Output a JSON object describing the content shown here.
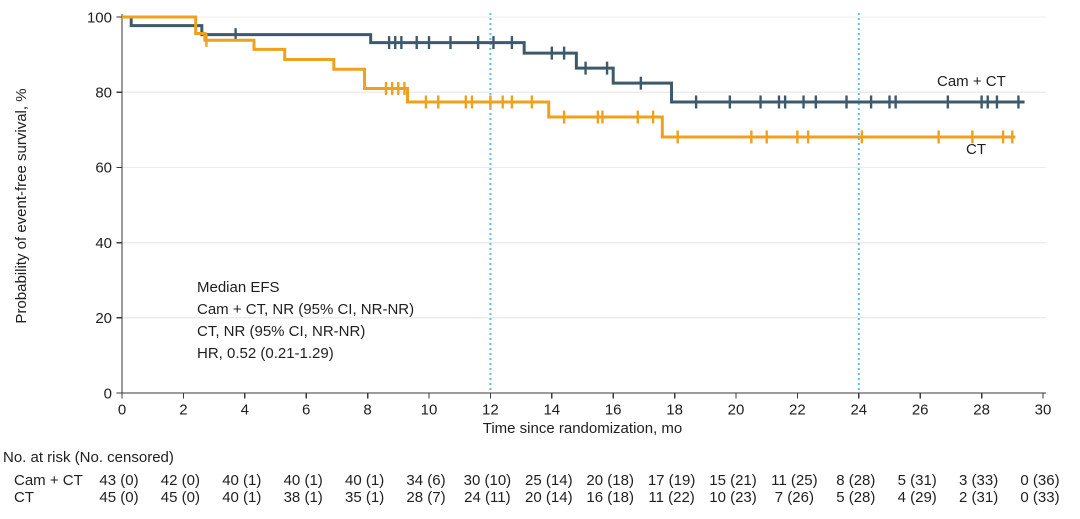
{
  "colors": {
    "series_cam_ct": "#3d5a6c",
    "series_ct": "#efa11d",
    "reference_line": "#59c2ea",
    "grid": "#ececec",
    "axis": "#3a3a3a",
    "text": "#1f1f1f"
  },
  "chart_data": {
    "type": "line",
    "variant": "kaplan-meier-step",
    "title": "",
    "xlabel": "Time since randomization, mo",
    "ylabel": "Probability of event-free survival, %",
    "xlim": [
      0,
      30
    ],
    "ylim": [
      0,
      100
    ],
    "x_ticks": [
      0,
      2,
      4,
      6,
      8,
      10,
      12,
      14,
      16,
      18,
      20,
      22,
      24,
      26,
      28,
      30
    ],
    "y_ticks": [
      0,
      20,
      40,
      60,
      80,
      100
    ],
    "grid": "horizontal",
    "legend_position": "curve-end-labels",
    "reference_lines_x": [
      12,
      24
    ],
    "annotation": {
      "lines": [
        "Median EFS",
        "Cam + CT, NR (95% CI, NR-NR)",
        "CT, NR (95% CI, NR-NR)",
        "HR, 0.52 (0.21-1.29)"
      ]
    },
    "series": [
      {
        "name": "Cam + CT",
        "end_label": "Cam + CT",
        "color": "#3d5a6c",
        "steps": [
          [
            0,
            100
          ],
          [
            0.3,
            97.7
          ],
          [
            2.6,
            95.3
          ],
          [
            8.1,
            93.2
          ],
          [
            13.1,
            90.4
          ],
          [
            14.8,
            86.4
          ],
          [
            16.0,
            82.4
          ],
          [
            17.9,
            77.4
          ],
          [
            29.4,
            77.4
          ]
        ],
        "censor_marks": [
          [
            3.7,
            95.3
          ],
          [
            8.7,
            93.2
          ],
          [
            8.9,
            93.2
          ],
          [
            9.1,
            93.2
          ],
          [
            9.6,
            93.2
          ],
          [
            10.0,
            93.2
          ],
          [
            10.7,
            93.2
          ],
          [
            11.6,
            93.2
          ],
          [
            12.1,
            93.2
          ],
          [
            12.7,
            93.2
          ],
          [
            14.0,
            90.4
          ],
          [
            14.4,
            90.4
          ],
          [
            15.1,
            86.4
          ],
          [
            15.8,
            86.4
          ],
          [
            16.9,
            82.4
          ],
          [
            18.7,
            77.4
          ],
          [
            19.8,
            77.4
          ],
          [
            20.8,
            77.4
          ],
          [
            21.4,
            77.4
          ],
          [
            21.6,
            77.4
          ],
          [
            22.2,
            77.4
          ],
          [
            22.6,
            77.4
          ],
          [
            23.6,
            77.4
          ],
          [
            24.4,
            77.4
          ],
          [
            25.0,
            77.4
          ],
          [
            25.2,
            77.4
          ],
          [
            26.9,
            77.4
          ],
          [
            28.0,
            77.4
          ],
          [
            28.2,
            77.4
          ],
          [
            28.5,
            77.4
          ],
          [
            29.2,
            77.4
          ]
        ]
      },
      {
        "name": "CT",
        "end_label": "CT",
        "color": "#efa11d",
        "steps": [
          [
            0,
            100
          ],
          [
            2.4,
            95.6
          ],
          [
            2.7,
            93.8
          ],
          [
            4.3,
            91.4
          ],
          [
            5.3,
            88.7
          ],
          [
            6.9,
            86.1
          ],
          [
            7.9,
            81.0
          ],
          [
            9.3,
            77.4
          ],
          [
            13.9,
            73.4
          ],
          [
            17.6,
            68.1
          ],
          [
            29.1,
            68.1
          ]
        ],
        "censor_marks": [
          [
            2.75,
            93.8
          ],
          [
            8.6,
            81.0
          ],
          [
            8.8,
            81.0
          ],
          [
            9.0,
            81.0
          ],
          [
            9.2,
            81.0
          ],
          [
            9.9,
            77.4
          ],
          [
            10.3,
            77.4
          ],
          [
            11.2,
            77.4
          ],
          [
            11.4,
            77.4
          ],
          [
            12.0,
            77.4
          ],
          [
            12.4,
            77.4
          ],
          [
            12.7,
            77.4
          ],
          [
            13.35,
            77.4
          ],
          [
            14.4,
            73.4
          ],
          [
            15.5,
            73.4
          ],
          [
            15.65,
            73.4
          ],
          [
            16.8,
            73.4
          ],
          [
            17.3,
            73.4
          ],
          [
            18.1,
            68.1
          ],
          [
            20.5,
            68.1
          ],
          [
            21.0,
            68.1
          ],
          [
            22.0,
            68.1
          ],
          [
            22.35,
            68.1
          ],
          [
            24.1,
            68.1
          ],
          [
            26.6,
            68.1
          ],
          [
            27.7,
            68.1
          ],
          [
            28.7,
            68.1
          ],
          [
            29.0,
            68.1
          ]
        ]
      }
    ]
  },
  "risk_table": {
    "title": "No. at risk (No. censored)",
    "time_points": [
      0,
      2,
      4,
      6,
      8,
      10,
      12,
      14,
      16,
      18,
      20,
      22,
      24,
      26,
      28,
      30
    ],
    "rows": [
      {
        "label": "Cam + CT",
        "values": [
          "43 (0)",
          "42 (0)",
          "40 (1)",
          "40 (1)",
          "40 (1)",
          "34 (6)",
          "30 (10)",
          "25 (14)",
          "20 (18)",
          "17 (19)",
          "15 (21)",
          "11 (25)",
          "8 (28)",
          "5 (31)",
          "3 (33)",
          "0 (36)"
        ]
      },
      {
        "label": "CT",
        "values": [
          "45 (0)",
          "45 (0)",
          "40 (1)",
          "38 (1)",
          "35 (1)",
          "28 (7)",
          "24 (11)",
          "20 (14)",
          "16 (18)",
          "11 (22)",
          "10 (23)",
          "7 (26)",
          "5 (28)",
          "4 (29)",
          "2 (31)",
          "0 (33)"
        ]
      }
    ]
  }
}
